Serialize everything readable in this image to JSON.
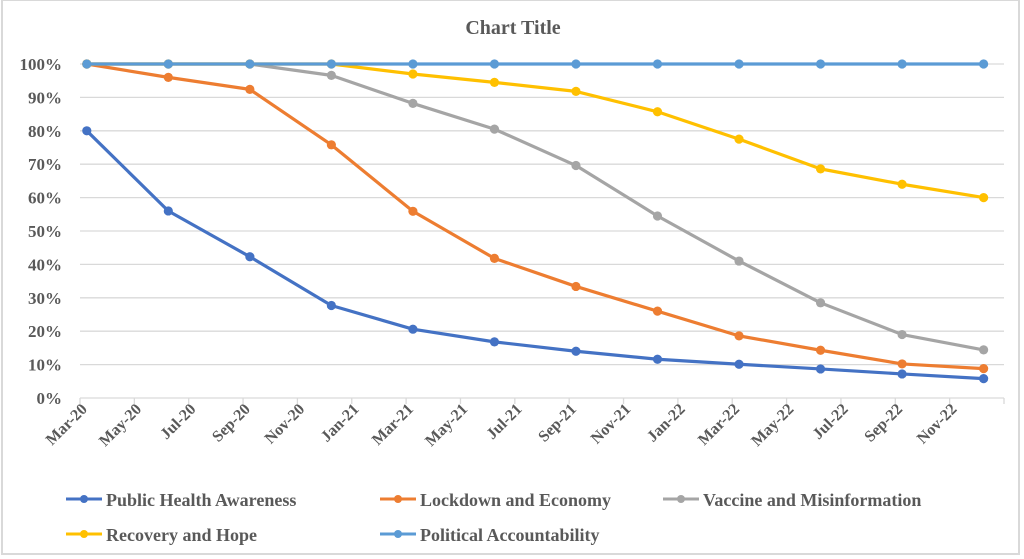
{
  "chart_data": {
    "type": "line",
    "title": "Chart Title",
    "xlabel": "",
    "ylabel": "",
    "ylim": [
      0,
      1
    ],
    "y_tick_labels": [
      "0%",
      "10%",
      "20%",
      "30%",
      "40%",
      "50%",
      "60%",
      "70%",
      "80%",
      "90%",
      "100%"
    ],
    "x_tick_labels": [
      "Mar-20",
      "May-20",
      "Jul-20",
      "Sep-20",
      "Nov-20",
      "Jan-21",
      "Mar-21",
      "May-21",
      "Jul-21",
      "Sep-21",
      "Nov-21",
      "Jan-22",
      "Mar-22",
      "May-22",
      "Jul-22",
      "Sep-22",
      "Nov-22"
    ],
    "x_axis_range": [
      "Mar-20",
      "Jan-23"
    ],
    "grid": true,
    "legend_position": "bottom",
    "x": [
      "Mar-20",
      "Jun-20",
      "Sep-20",
      "Dec-20",
      "Mar-21",
      "Jun-21",
      "Sep-21",
      "Dec-21",
      "Mar-22",
      "Jun-22",
      "Sep-22",
      "Dec-22"
    ],
    "series": [
      {
        "name": "Public Health Awareness",
        "color": "#4472c4",
        "values": [
          0.8,
          0.56,
          0.423,
          0.277,
          0.206,
          0.168,
          0.14,
          0.116,
          0.101,
          0.087,
          0.072,
          0.058
        ]
      },
      {
        "name": "Lockdown and Economy",
        "color": "#ed7d31",
        "values": [
          1.0,
          0.96,
          0.924,
          0.758,
          0.559,
          0.418,
          0.334,
          0.26,
          0.186,
          0.143,
          0.102,
          0.088
        ]
      },
      {
        "name": "Vaccine and Misinformation",
        "color": "#a5a5a5",
        "values": [
          1.0,
          1.0,
          1.0,
          0.966,
          0.882,
          0.805,
          0.696,
          0.545,
          0.41,
          0.285,
          0.19,
          0.144
        ]
      },
      {
        "name": "Recovery and Hope",
        "color": "#ffc000",
        "values": [
          1.0,
          1.0,
          1.0,
          1.0,
          0.97,
          0.945,
          0.918,
          0.857,
          0.775,
          0.686,
          0.64,
          0.6
        ]
      },
      {
        "name": "Political Accountability",
        "color": "#5b9bd5",
        "values": [
          1.0,
          1.0,
          1.0,
          1.0,
          1.0,
          1.0,
          1.0,
          1.0,
          1.0,
          1.0,
          1.0,
          1.0
        ]
      }
    ]
  }
}
